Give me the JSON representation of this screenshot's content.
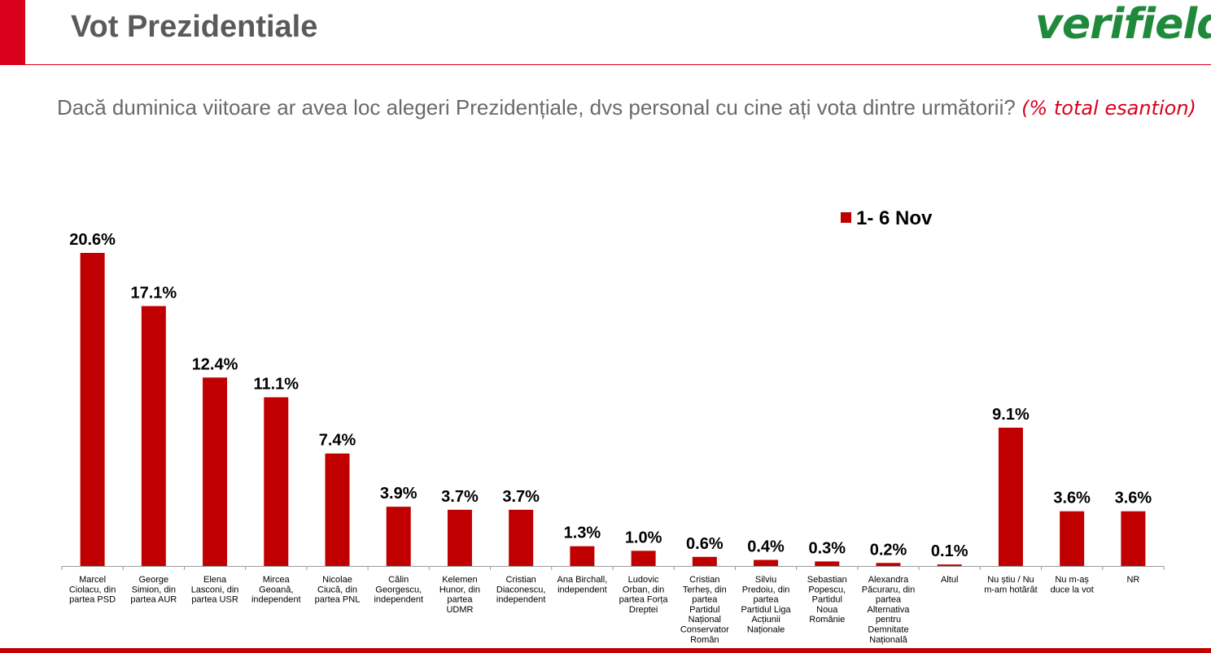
{
  "header": {
    "title": "Vot Prezidentiale",
    "logo_text": "verifield"
  },
  "question": {
    "text": "Dacă duminica viitoare ar avea loc alegeri Prezidențiale, dvs personal cu cine ați vota dintre următorii?",
    "note": "(% total esantion)"
  },
  "colors": {
    "bar": "#c00000",
    "accent": "#d9001b",
    "logo": "#1f8a3c"
  },
  "chart_data": {
    "type": "bar",
    "title": "",
    "xlabel": "",
    "ylabel": "",
    "ylim": [
      0,
      22
    ],
    "legend": "top-right",
    "series": [
      {
        "name": "1- 6 Nov",
        "values": [
          20.6,
          17.1,
          12.4,
          11.1,
          7.4,
          3.9,
          3.7,
          3.7,
          1.3,
          1.0,
          0.6,
          0.4,
          0.3,
          0.2,
          0.1,
          9.1,
          3.6,
          3.6
        ]
      }
    ],
    "data_labels": [
      "20.6%",
      "17.1%",
      "12.4%",
      "11.1%",
      "7.4%",
      "3.9%",
      "3.7%",
      "3.7%",
      "1.3%",
      "1.0%",
      "0.6%",
      "0.4%",
      "0.3%",
      "0.2%",
      "0.1%",
      "9.1%",
      "3.6%",
      "3.6%"
    ],
    "categories": [
      [
        "Marcel",
        "Ciolacu, din",
        "partea PSD"
      ],
      [
        "George",
        "Simion, din",
        "partea AUR"
      ],
      [
        "Elena",
        "Lasconi, din",
        "partea USR"
      ],
      [
        "Mircea",
        "Geoană,",
        "independent"
      ],
      [
        "Nicolae",
        "Ciucă, din",
        "partea PNL"
      ],
      [
        "Călin",
        "Georgescu,",
        "independent"
      ],
      [
        "Kelemen",
        "Hunor, din",
        "partea",
        "UDMR"
      ],
      [
        "Cristian",
        "Diaconescu,",
        "independent"
      ],
      [
        "Ana Birchall,",
        "independent"
      ],
      [
        "Ludovic",
        "Orban, din",
        "partea Forța",
        "Dreptei"
      ],
      [
        "Cristian",
        "Terheș, din",
        "partea",
        "Partidul",
        "Național",
        "Conservator",
        "Român"
      ],
      [
        "Silviu",
        "Predoiu, din",
        "partea",
        "Partidul Liga",
        "Acțiunii",
        "Naționale"
      ],
      [
        "Sebastian",
        "Popescu,",
        "Partidul",
        "Noua",
        "Românie"
      ],
      [
        "Alexandra",
        "Păcuraru, din",
        "partea",
        "Alternativa",
        "pentru",
        "Demnitate",
        "Națională"
      ],
      [
        "Altul"
      ],
      [
        "Nu știu / Nu",
        "m-am hotărât"
      ],
      [
        "Nu m-aș",
        "duce la vot"
      ],
      [
        "NR"
      ]
    ]
  }
}
